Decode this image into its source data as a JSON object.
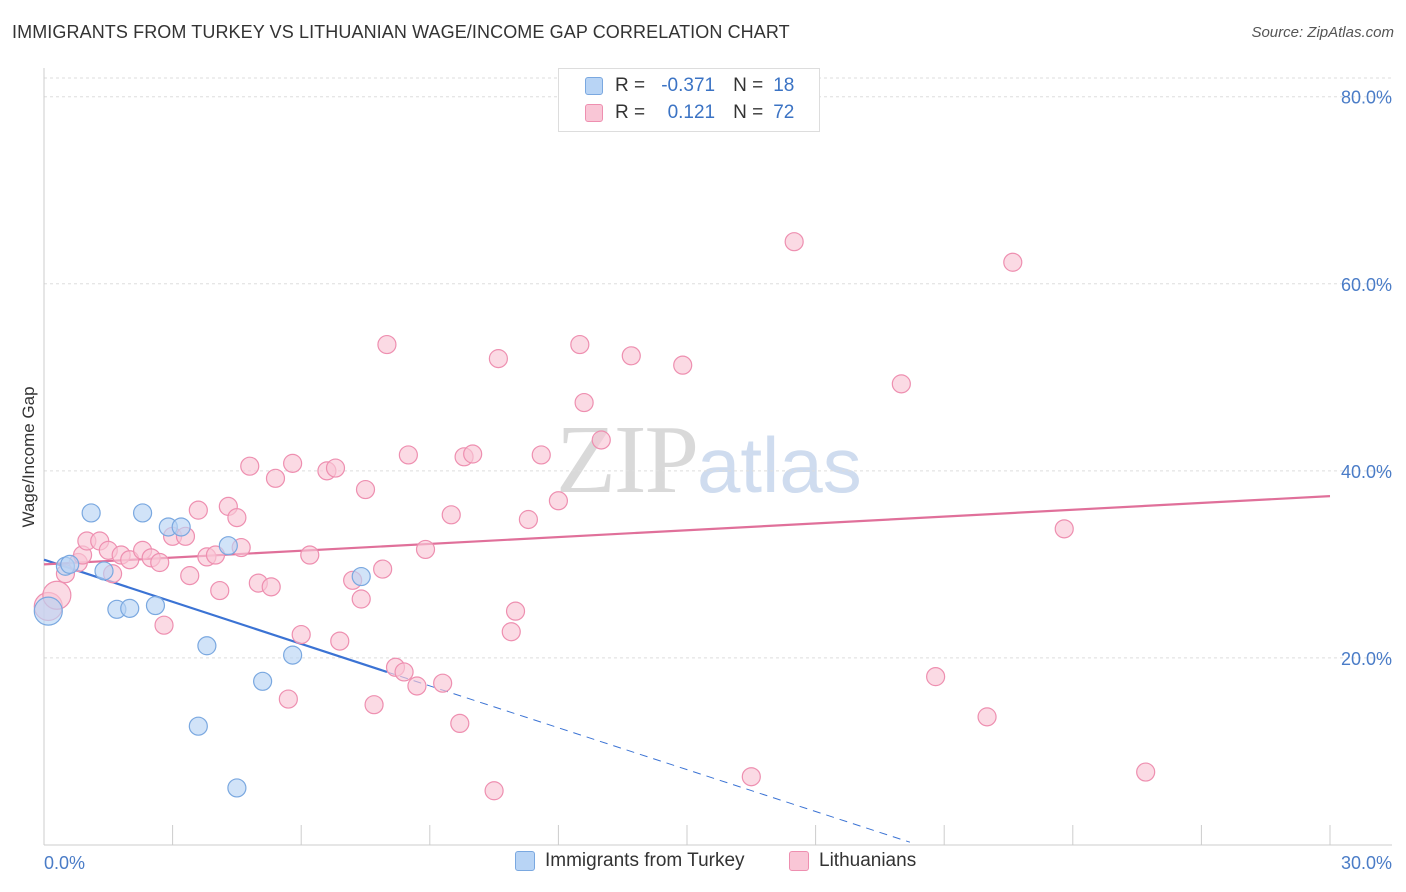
{
  "title": "IMMIGRANTS FROM TURKEY VS LITHUANIAN WAGE/INCOME GAP CORRELATION CHART",
  "source": "Source: ZipAtlas.com",
  "watermark": {
    "zip": "ZIP",
    "atlas": "atlas"
  },
  "legend": {
    "rows": [
      {
        "r_label": "R =",
        "r_value": "-0.371",
        "n_label": "N =",
        "n_value": "18",
        "color": "#b8d4f5",
        "border": "#7aa8e0"
      },
      {
        "r_label": "R =",
        "r_value": "0.121",
        "n_label": "N =",
        "n_value": "72",
        "color": "#f9c6d6",
        "border": "#ee8fb0"
      }
    ]
  },
  "bottom_legend": {
    "items": [
      {
        "label": "Immigrants from Turkey",
        "color": "#b8d4f5",
        "border": "#7aa8e0"
      },
      {
        "label": "Lithuanians",
        "color": "#f9c6d6",
        "border": "#ee8fb0"
      }
    ]
  },
  "chart_data": {
    "type": "scatter",
    "title": "IMMIGRANTS FROM TURKEY VS LITHUANIAN WAGE/INCOME GAP CORRELATION CHART",
    "xlabel": "",
    "ylabel": "Wage/Income Gap",
    "xlim": [
      0,
      30
    ],
    "ylim": [
      0,
      82
    ],
    "x_tick_labels": [
      "0.0%",
      "30.0%"
    ],
    "y_ticks": [
      20,
      40,
      60,
      80
    ],
    "y_tick_labels": [
      "20.0%",
      "40.0%",
      "60.0%",
      "80.0%"
    ],
    "grid": true,
    "series": [
      {
        "name": "Immigrants from Turkey",
        "color": "#7aa8e0",
        "fill": "#b8d4f5",
        "line_color": "#3b73d4",
        "trend": {
          "x0": 0,
          "y0": 30.5,
          "x1": 8,
          "y1": 18.5,
          "dash_to_x": 20.2,
          "dash_to_y": 0.3
        },
        "points": [
          [
            0.1,
            25.0
          ],
          [
            0.5,
            29.8
          ],
          [
            1.1,
            35.5
          ],
          [
            1.4,
            29.3
          ],
          [
            1.7,
            25.2
          ],
          [
            2.0,
            25.3
          ],
          [
            2.3,
            35.5
          ],
          [
            2.6,
            25.6
          ],
          [
            2.9,
            34.0
          ],
          [
            3.2,
            34.0
          ],
          [
            3.8,
            21.3
          ],
          [
            4.3,
            32.0
          ],
          [
            4.5,
            6.1
          ],
          [
            5.1,
            17.5
          ],
          [
            5.8,
            20.3
          ],
          [
            7.4,
            28.7
          ],
          [
            3.6,
            12.7
          ],
          [
            0.6,
            30.0
          ]
        ]
      },
      {
        "name": "Lithuanians",
        "color": "#ee8fb0",
        "fill": "#f9c6d6",
        "line_color": "#e0709a",
        "trend": {
          "x0": 0,
          "y0": 30.0,
          "x1": 30,
          "y1": 37.3
        },
        "points": [
          [
            0.1,
            25.5
          ],
          [
            0.3,
            26.7
          ],
          [
            0.5,
            29.0
          ],
          [
            0.8,
            30.2
          ],
          [
            0.9,
            31.0
          ],
          [
            1.0,
            32.5
          ],
          [
            1.3,
            32.5
          ],
          [
            1.5,
            31.5
          ],
          [
            1.6,
            29.0
          ],
          [
            1.8,
            31.0
          ],
          [
            2.0,
            30.5
          ],
          [
            2.3,
            31.5
          ],
          [
            2.5,
            30.7
          ],
          [
            2.7,
            30.2
          ],
          [
            2.8,
            23.5
          ],
          [
            3.0,
            33.0
          ],
          [
            3.3,
            33.0
          ],
          [
            3.4,
            28.8
          ],
          [
            3.6,
            35.8
          ],
          [
            3.8,
            30.8
          ],
          [
            4.0,
            31.0
          ],
          [
            4.1,
            27.2
          ],
          [
            4.3,
            36.2
          ],
          [
            4.5,
            35.0
          ],
          [
            4.6,
            31.8
          ],
          [
            4.8,
            40.5
          ],
          [
            5.0,
            28.0
          ],
          [
            5.3,
            27.6
          ],
          [
            5.4,
            39.2
          ],
          [
            5.7,
            15.6
          ],
          [
            5.8,
            40.8
          ],
          [
            6.0,
            22.5
          ],
          [
            6.2,
            31.0
          ],
          [
            6.6,
            40.0
          ],
          [
            6.8,
            40.3
          ],
          [
            6.9,
            21.8
          ],
          [
            7.2,
            28.3
          ],
          [
            7.4,
            26.3
          ],
          [
            7.5,
            38.0
          ],
          [
            7.7,
            15.0
          ],
          [
            7.9,
            29.5
          ],
          [
            8.0,
            53.5
          ],
          [
            8.2,
            19.0
          ],
          [
            8.4,
            18.5
          ],
          [
            8.5,
            41.7
          ],
          [
            8.7,
            17.0
          ],
          [
            8.9,
            31.6
          ],
          [
            9.3,
            17.3
          ],
          [
            9.5,
            35.3
          ],
          [
            9.7,
            13.0
          ],
          [
            9.8,
            41.5
          ],
          [
            10.0,
            41.8
          ],
          [
            10.5,
            5.8
          ],
          [
            10.6,
            52.0
          ],
          [
            10.9,
            22.8
          ],
          [
            11.0,
            25.0
          ],
          [
            11.3,
            34.8
          ],
          [
            11.6,
            41.7
          ],
          [
            12.0,
            36.8
          ],
          [
            12.5,
            53.5
          ],
          [
            12.6,
            47.3
          ],
          [
            13.0,
            43.3
          ],
          [
            13.7,
            52.3
          ],
          [
            14.9,
            51.3
          ],
          [
            16.5,
            7.3
          ],
          [
            17.5,
            64.5
          ],
          [
            20.0,
            49.3
          ],
          [
            20.8,
            18.0
          ],
          [
            22.0,
            13.7
          ],
          [
            22.6,
            62.3
          ],
          [
            23.8,
            33.8
          ],
          [
            25.7,
            7.8
          ]
        ]
      }
    ]
  }
}
